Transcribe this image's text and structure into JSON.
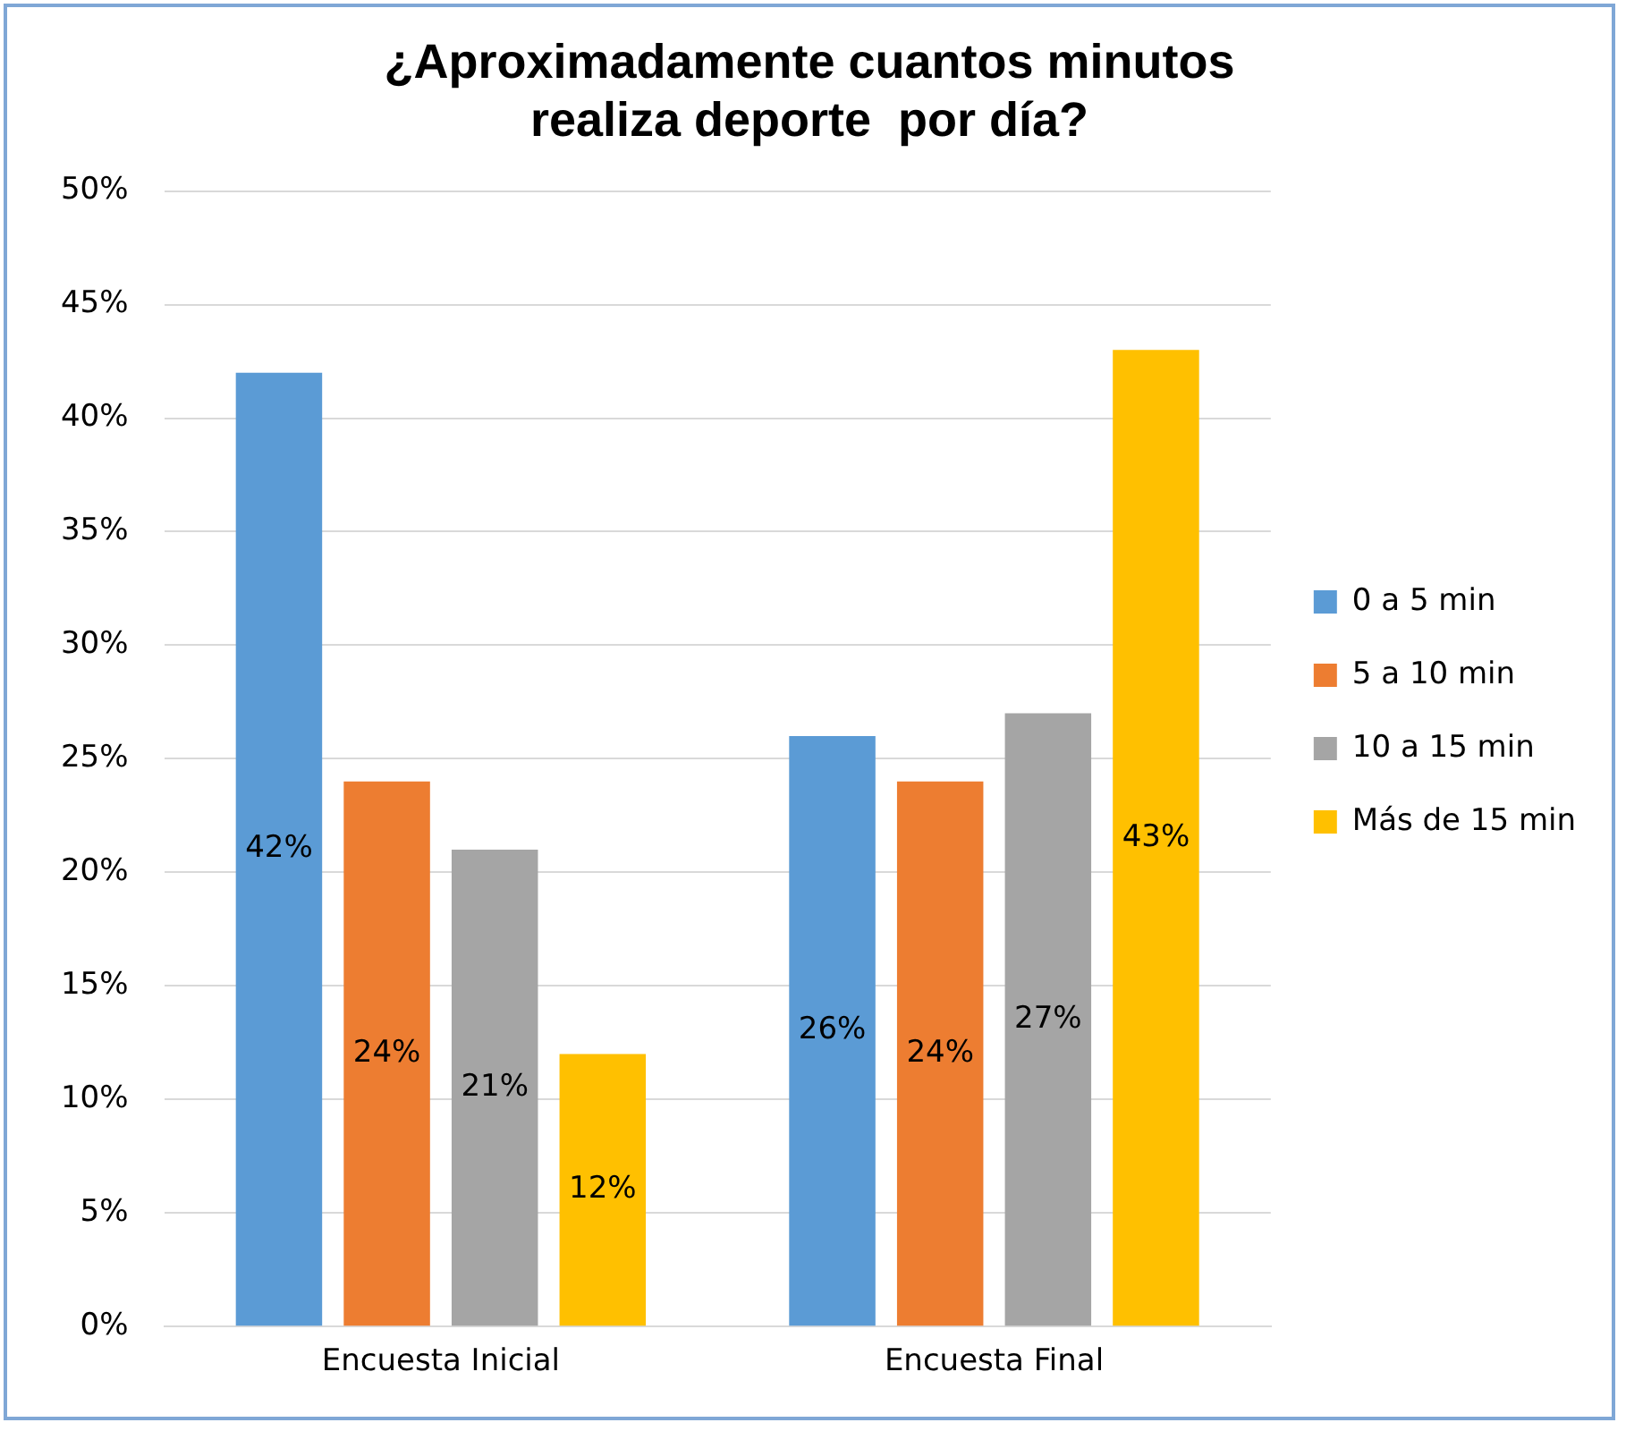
{
  "chart_data": {
    "type": "bar",
    "title": "¿Aproximadamente cuantos minutos\nrealiza deporte  por día?",
    "categories": [
      "Encuesta Inicial",
      "Encuesta Final"
    ],
    "series": [
      {
        "name": "0 a 5 min",
        "color": "#5b9bd5",
        "values": [
          42,
          26
        ],
        "value_labels": [
          "42%",
          "26%"
        ]
      },
      {
        "name": "5 a 10 min",
        "color": "#ed7d31",
        "values": [
          24,
          24
        ],
        "value_labels": [
          "24%",
          "24%"
        ]
      },
      {
        "name": "10 a 15 min",
        "color": "#a5a5a5",
        "values": [
          21,
          27
        ],
        "value_labels": [
          "21%",
          "27%"
        ]
      },
      {
        "name": "Más de 15 min",
        "color": "#ffc000",
        "values": [
          12,
          43
        ],
        "value_labels": [
          "12%",
          "43%"
        ]
      }
    ],
    "ylim": [
      0,
      50
    ],
    "yticks": [
      {
        "value": 0,
        "label": "0%"
      },
      {
        "value": 5,
        "label": "5%"
      },
      {
        "value": 10,
        "label": "10%"
      },
      {
        "value": 15,
        "label": "15%"
      },
      {
        "value": 20,
        "label": "20%"
      },
      {
        "value": 25,
        "label": "25%"
      },
      {
        "value": 30,
        "label": "30%"
      },
      {
        "value": 35,
        "label": "35%"
      },
      {
        "value": 40,
        "label": "40%"
      },
      {
        "value": 45,
        "label": "45%"
      },
      {
        "value": 50,
        "label": "50%"
      }
    ],
    "grid": "y",
    "legend": "right"
  }
}
